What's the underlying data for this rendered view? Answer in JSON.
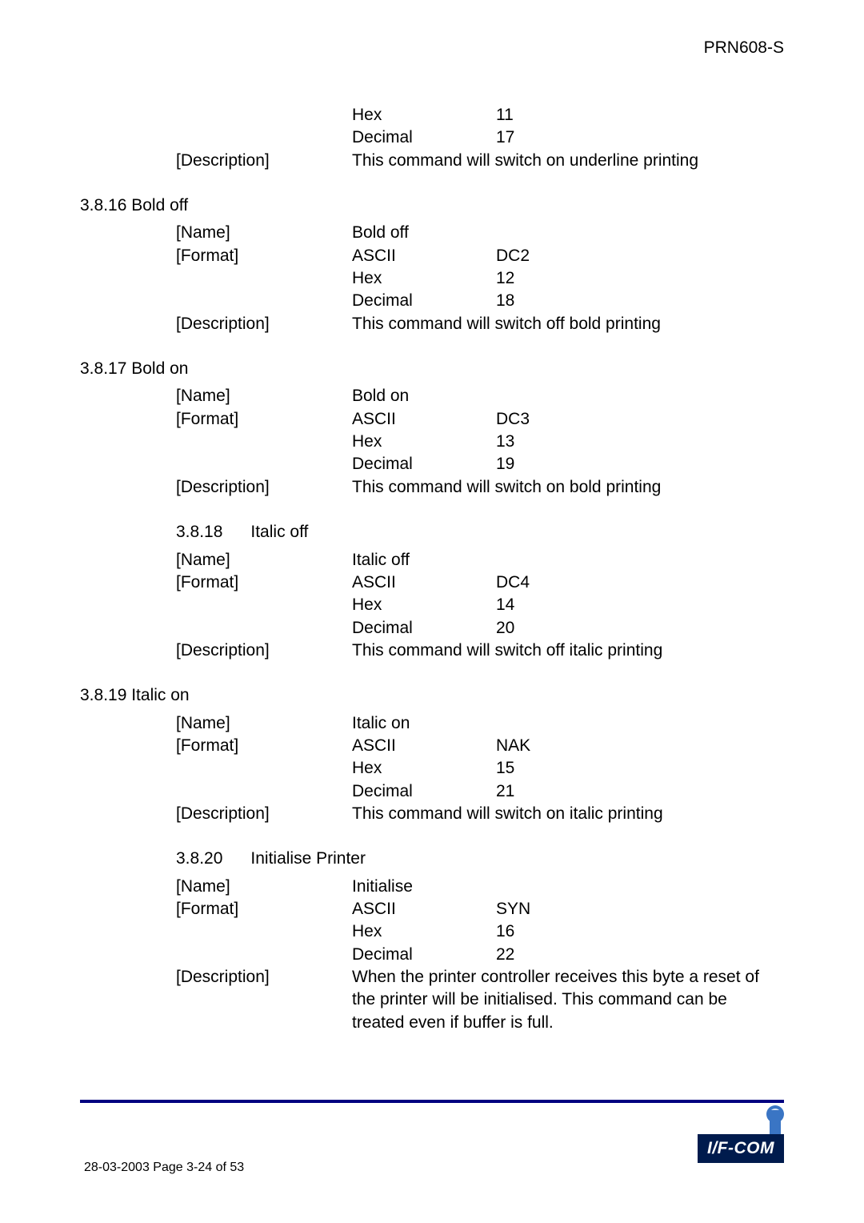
{
  "header": {
    "doc_id": "PRN608-S"
  },
  "sec0": {
    "hex_label": "Hex",
    "hex_val": "11",
    "dec_label": "Decimal",
    "dec_val": "17",
    "desc_label": "[Description]",
    "desc_text": "This command will switch on underline printing"
  },
  "sec_bold_off": {
    "title": "3.8.16 Bold off",
    "name_label": "[Name]",
    "name_val": "Bold off",
    "fmt_label": "[Format]",
    "ascii_label": "ASCII",
    "ascii_val": "DC2",
    "hex_label": "Hex",
    "hex_val": "12",
    "dec_label": "Decimal",
    "dec_val": "18",
    "desc_label": "[Description]",
    "desc_text": "This command will switch off bold printing"
  },
  "sec_bold_on": {
    "title": "3.8.17 Bold on",
    "name_label": "[Name]",
    "name_val": "Bold on",
    "fmt_label": "[Format]",
    "ascii_label": "ASCII",
    "ascii_val": "DC3",
    "hex_label": "Hex",
    "hex_val": "13",
    "dec_label": "Decimal",
    "dec_val": "19",
    "desc_label": "[Description]",
    "desc_text": "This command will switch on bold printing"
  },
  "sec_italic_off": {
    "title": "3.8.18      Italic off",
    "name_label": "[Name]",
    "name_val": "Italic off",
    "fmt_label": "[Format]",
    "ascii_label": "ASCII",
    "ascii_val": "DC4",
    "hex_label": "Hex",
    "hex_val": "14",
    "dec_label": "Decimal",
    "dec_val": "20",
    "desc_label": "[Description]",
    "desc_text": "This command will switch off italic printing"
  },
  "sec_italic_on": {
    "title": "3.8.19 Italic on",
    "name_label": "[Name]",
    "name_val": "Italic on",
    "fmt_label": "[Format]",
    "ascii_label": "ASCII",
    "ascii_val": "NAK",
    "hex_label": "Hex",
    "hex_val": "15",
    "dec_label": "Decimal",
    "dec_val": "21",
    "desc_label": "[Description]",
    "desc_text": "This command will switch on italic printing"
  },
  "sec_init": {
    "title": "3.8.20      Initialise Printer",
    "name_label": "[Name]",
    "name_val": "Initialise",
    "fmt_label": "[Format]",
    "ascii_label": "ASCII",
    "ascii_val": "SYN",
    "hex_label": "Hex",
    "hex_val": "16",
    "dec_label": "Decimal",
    "dec_val": "22",
    "desc_label": "[Description]",
    "desc_text": "When the printer controller receives this byte a reset of the printer will be initialised. This command can be treated even if buffer is full."
  },
  "footer": {
    "text": "28-03-2003    Page  3-24 of   53"
  },
  "logo": {
    "text": "I/F-COM"
  }
}
